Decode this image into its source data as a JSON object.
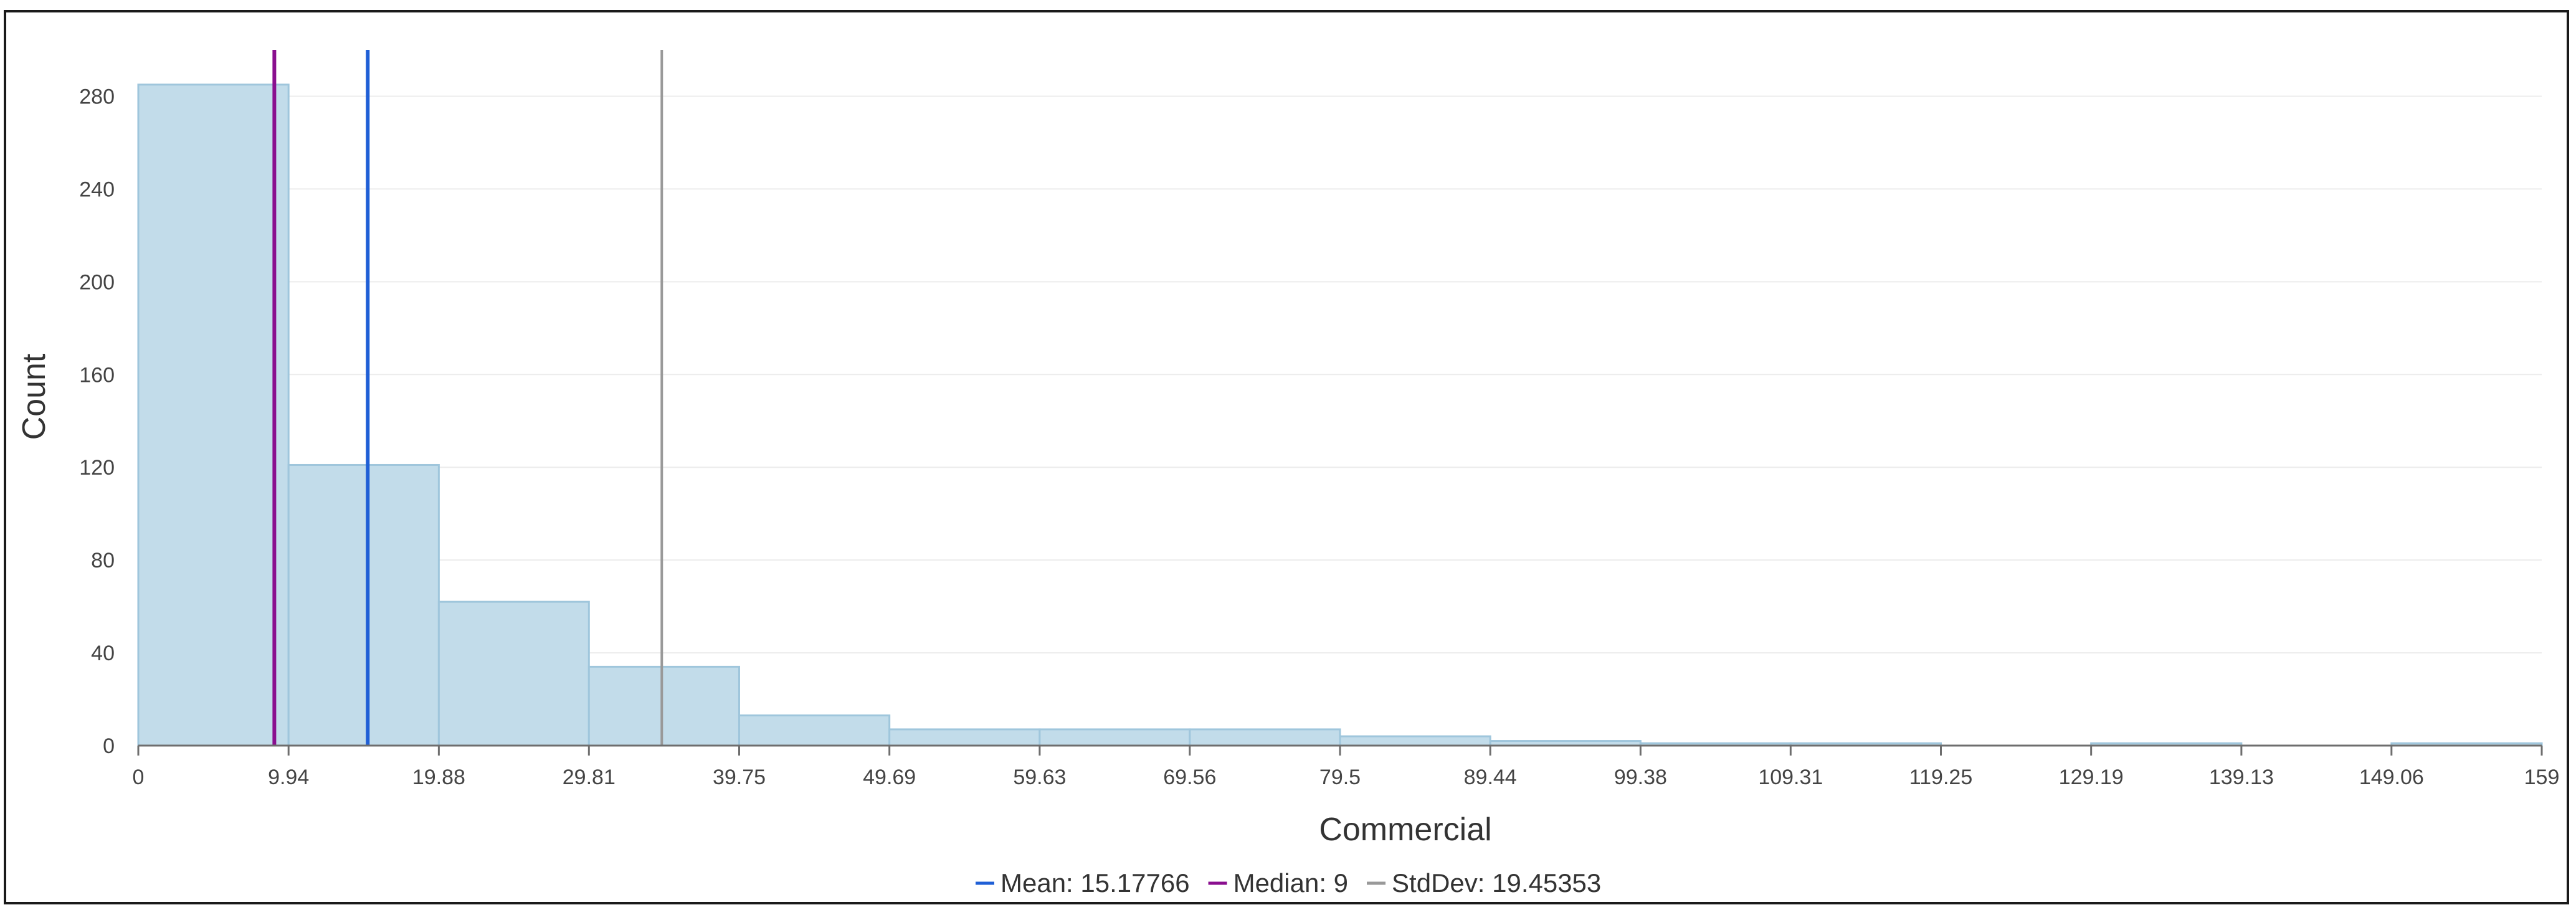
{
  "chart_data": {
    "type": "bar",
    "subtype": "histogram",
    "xlabel": "Commercial",
    "ylabel": "Count",
    "x_ticks": [
      "0",
      "9.94",
      "19.88",
      "29.81",
      "39.75",
      "49.69",
      "59.63",
      "69.56",
      "79.5",
      "89.44",
      "99.38",
      "109.31",
      "119.25",
      "129.19",
      "139.13",
      "149.06",
      "159"
    ],
    "xlim": [
      0,
      159
    ],
    "y_ticks": [
      "0",
      "40",
      "80",
      "120",
      "160",
      "200",
      "240",
      "280"
    ],
    "ylim": [
      0,
      300
    ],
    "bins": [
      {
        "start": 0,
        "end": 9.94,
        "count": 285
      },
      {
        "start": 9.94,
        "end": 19.88,
        "count": 121
      },
      {
        "start": 19.88,
        "end": 29.81,
        "count": 62
      },
      {
        "start": 29.81,
        "end": 39.75,
        "count": 34
      },
      {
        "start": 39.75,
        "end": 49.69,
        "count": 13
      },
      {
        "start": 49.69,
        "end": 59.63,
        "count": 7
      },
      {
        "start": 59.63,
        "end": 69.56,
        "count": 7
      },
      {
        "start": 69.56,
        "end": 79.5,
        "count": 7
      },
      {
        "start": 79.5,
        "end": 89.44,
        "count": 4
      },
      {
        "start": 89.44,
        "end": 99.38,
        "count": 2
      },
      {
        "start": 99.38,
        "end": 109.31,
        "count": 1
      },
      {
        "start": 109.31,
        "end": 119.25,
        "count": 1
      },
      {
        "start": 119.25,
        "end": 129.19,
        "count": 0
      },
      {
        "start": 129.19,
        "end": 139.13,
        "count": 1
      },
      {
        "start": 139.13,
        "end": 149.06,
        "count": 0
      },
      {
        "start": 149.06,
        "end": 159,
        "count": 1
      }
    ],
    "bar_color": "#c2dcea",
    "bar_edge_color": "#9fc6dc",
    "grid": true,
    "reference_lines": [
      {
        "label": "Mean: 15.17766",
        "value": 15.17766,
        "color": "#1f5fd6"
      },
      {
        "label": "Median: 9",
        "value": 9,
        "color": "#8a0f8f"
      },
      {
        "label": "StdDev: 19.45353",
        "value": 34.63119,
        "color": "#999999"
      }
    ],
    "legend_position": "bottom-center"
  }
}
